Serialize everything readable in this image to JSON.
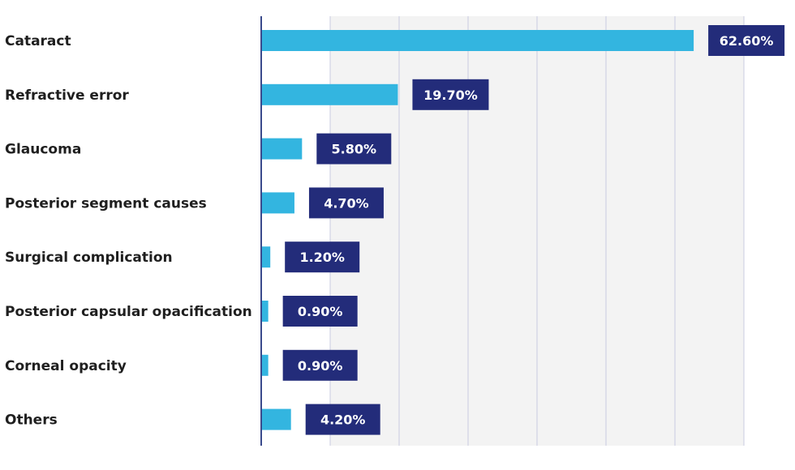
{
  "chart_data": {
    "type": "bar",
    "orientation": "horizontal",
    "categories": [
      "Cataract",
      "Refractive error",
      "Glaucoma",
      "Posterior segment causes",
      "Surgical complication",
      "Posterior capsular opacification",
      "Corneal opacity",
      "Others"
    ],
    "values": [
      62.6,
      19.7,
      5.8,
      4.7,
      1.2,
      0.9,
      0.9,
      4.2
    ],
    "value_labels": [
      "62.60%",
      "19.70%",
      "5.80%",
      "4.70%",
      "1.20%",
      "0.90%",
      "0.90%",
      "4.20%"
    ],
    "title": "",
    "xlabel": "",
    "ylabel": "",
    "xlim": [
      0,
      70
    ],
    "grid": true,
    "legend": "none",
    "colors": {
      "bar": "#33b5e0",
      "label_box": "#232c7a",
      "label_text": "#ffffff",
      "axis": "#3a4a8c",
      "grid": "#c9cbe0",
      "plot_band": "#f3f3f3",
      "category_text": "#1f1f1f"
    }
  }
}
